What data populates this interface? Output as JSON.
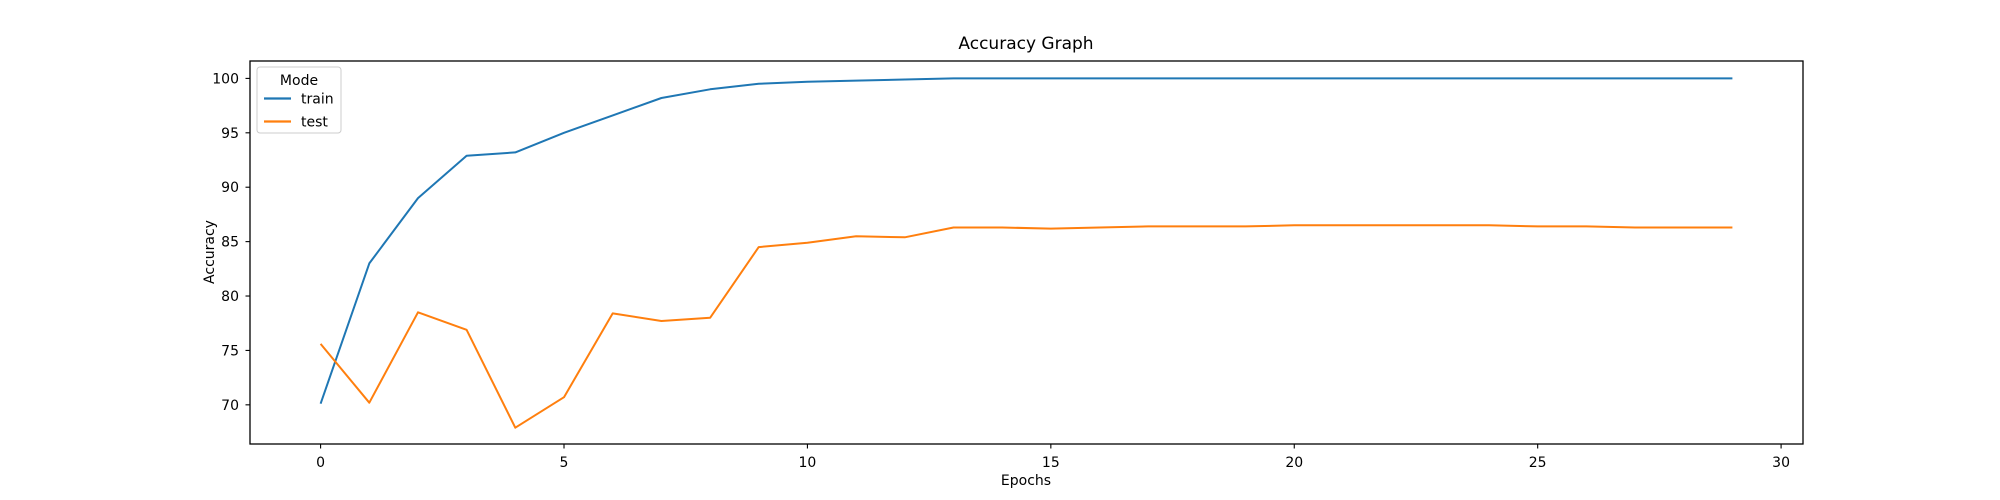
{
  "chart_data": {
    "type": "line",
    "title": "Accuracy Graph",
    "xlabel": "Epochs",
    "ylabel": "Accuracy",
    "legend_title": "Mode",
    "legend_position": "upper left",
    "grid": false,
    "background_color": "#ffffff",
    "spine_color": "#000000",
    "xlim": [
      -1.45,
      30.45
    ],
    "ylim": [
      66.4,
      101.6
    ],
    "xticks": [
      0,
      5,
      10,
      15,
      20,
      25,
      30
    ],
    "yticks": [
      70,
      75,
      80,
      85,
      90,
      95,
      100
    ],
    "x": [
      0,
      1,
      2,
      3,
      4,
      5,
      6,
      7,
      8,
      9,
      10,
      11,
      12,
      13,
      14,
      15,
      16,
      17,
      18,
      19,
      20,
      21,
      22,
      23,
      24,
      25,
      26,
      27,
      28,
      29
    ],
    "series": [
      {
        "name": "train",
        "color": "#1f77b4",
        "values": [
          70.1,
          83.0,
          89.0,
          92.9,
          93.2,
          95.0,
          96.6,
          98.2,
          99.0,
          99.5,
          99.7,
          99.8,
          99.9,
          100.0,
          100.0,
          100.0,
          100.0,
          100.0,
          100.0,
          100.0,
          100.0,
          100.0,
          100.0,
          100.0,
          100.0,
          100.0,
          100.0,
          100.0,
          100.0,
          100.0
        ]
      },
      {
        "name": "test",
        "color": "#ff7f0e",
        "values": [
          75.6,
          70.2,
          78.5,
          76.9,
          67.9,
          70.7,
          78.4,
          77.7,
          78.0,
          84.5,
          84.9,
          85.5,
          85.4,
          86.3,
          86.3,
          86.2,
          86.3,
          86.4,
          86.4,
          86.4,
          86.5,
          86.5,
          86.5,
          86.5,
          86.5,
          86.4,
          86.4,
          86.3,
          86.3,
          86.3
        ]
      }
    ]
  }
}
